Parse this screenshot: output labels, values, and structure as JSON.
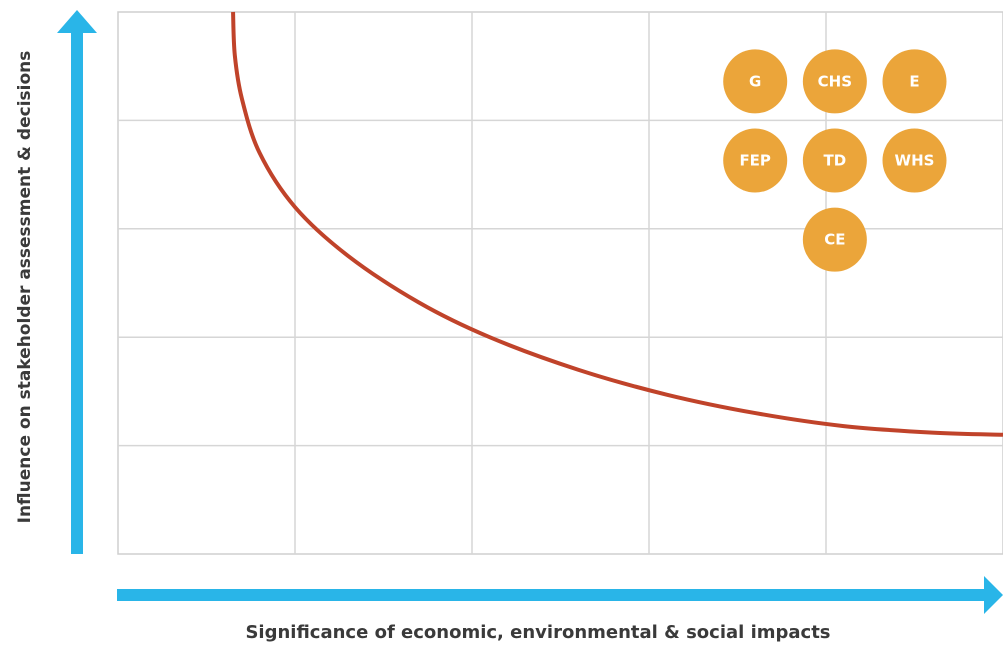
{
  "chart_data": {
    "type": "scatter",
    "title": "",
    "xlabel": "Significance of economic, environmental & social impacts",
    "ylabel": "Influence on stakeholder assessment & decisions",
    "xlim": [
      0,
      5
    ],
    "ylim": [
      0,
      5
    ],
    "grid": true,
    "points": [
      {
        "label": "G",
        "x": 3.6,
        "y": 4.36
      },
      {
        "label": "CHS",
        "x": 4.05,
        "y": 4.36
      },
      {
        "label": "E",
        "x": 4.5,
        "y": 4.36
      },
      {
        "label": "FEP",
        "x": 3.6,
        "y": 3.63
      },
      {
        "label": "TD",
        "x": 4.05,
        "y": 3.63
      },
      {
        "label": "WHS",
        "x": 4.5,
        "y": 3.63
      },
      {
        "label": "CE",
        "x": 4.05,
        "y": 2.9
      }
    ],
    "threshold_curve": {
      "x": [
        0.65,
        0.66,
        0.7,
        0.8,
        1.0,
        1.3,
        1.7,
        2.1,
        2.6,
        3.1,
        3.6,
        4.1,
        4.6,
        5.0
      ],
      "y": [
        5.0,
        4.6,
        4.2,
        3.7,
        3.2,
        2.75,
        2.32,
        2.0,
        1.7,
        1.47,
        1.3,
        1.18,
        1.12,
        1.1
      ]
    }
  },
  "colors": {
    "axis_arrow": "#29b5e8",
    "curve": "#c0432a",
    "bubble": "#eba53a",
    "grid": "#d6d6d6",
    "plot_border": "#cfcfcf"
  }
}
